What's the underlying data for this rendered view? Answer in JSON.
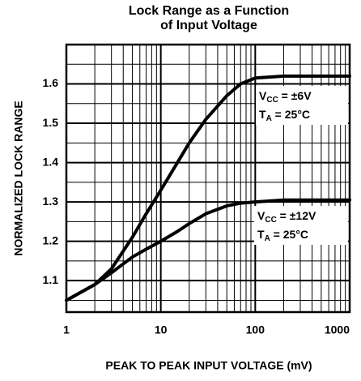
{
  "chart_data": {
    "type": "line",
    "title": [
      "Lock Range as a Function",
      "of Input Voltage"
    ],
    "xlabel": "PEAK TO PEAK INPUT VOLTAGE (mV)",
    "ylabel": "NORMALIZED LOCK RANGE",
    "xscale": "log",
    "xlim": [
      1,
      1000
    ],
    "xticks": [
      1,
      10,
      100,
      1000
    ],
    "ylim": [
      1.02,
      1.7
    ],
    "yticks": [
      1.1,
      1.2,
      1.3,
      1.4,
      1.5,
      1.6
    ],
    "yticks_minor": [
      1.05,
      1.15,
      1.25,
      1.35,
      1.45,
      1.55,
      1.65
    ],
    "grid": true,
    "color": "#000000",
    "x": [
      1,
      2,
      3,
      5,
      7,
      10,
      15,
      20,
      30,
      50,
      70,
      100,
      200,
      1000
    ],
    "series": [
      {
        "values": [
          1.05,
          1.09,
          1.13,
          1.21,
          1.27,
          1.33,
          1.4,
          1.45,
          1.51,
          1.57,
          1.6,
          1.615,
          1.62,
          1.62
        ]
      },
      {
        "values": [
          1.05,
          1.09,
          1.12,
          1.16,
          1.18,
          1.2,
          1.225,
          1.245,
          1.27,
          1.29,
          1.297,
          1.3,
          1.305,
          1.305
        ]
      }
    ],
    "annotations": [
      {
        "lines": [
          [
            "V",
            "CC",
            " = ±6V"
          ],
          [
            "T",
            "A",
            " = 25°C"
          ]
        ]
      },
      {
        "lines": [
          [
            "V",
            "CC",
            " = ±12V"
          ],
          [
            "T",
            "A",
            " = 25°C"
          ]
        ]
      }
    ]
  }
}
